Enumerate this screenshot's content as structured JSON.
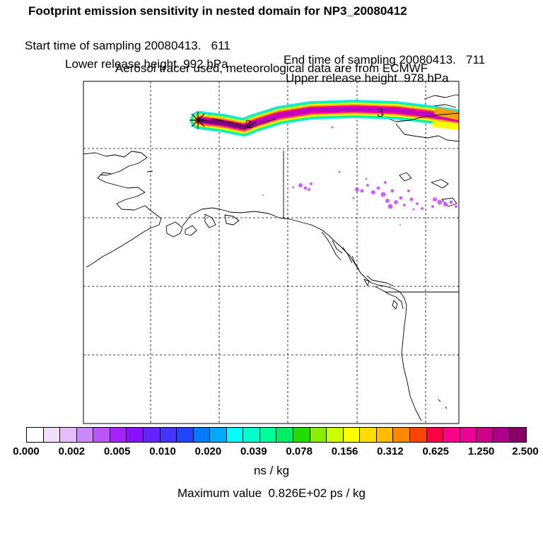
{
  "header": {
    "title": "Footprint emission sensitivity in nested domain for NP3_20080412",
    "start_label": "Start time of sampling 20080413.   611",
    "end_label": "End time of sampling 20080413.   711",
    "lower_release": "Lower release height  992 hPa",
    "upper_release": "Upper release height  978 hPa",
    "tracer_info": "Aerosol tracer used, meteorological data are from ECMWF"
  },
  "map": {
    "release_marker": "asterisk-icon",
    "plume_labels": [
      "3",
      "2"
    ],
    "plume_colors": [
      "#ff00a0",
      "#c000c0",
      "#7a0080",
      "#ffa000",
      "#ffff00",
      "#00ff80",
      "#00e0ff"
    ],
    "scatter_color": "#cc44ff"
  },
  "colorbar": {
    "colors": [
      "#ffffff",
      "#f3ddff",
      "#e7bbff",
      "#cd88ff",
      "#b855ff",
      "#a522ff",
      "#8811ff",
      "#6622ff",
      "#4433ff",
      "#2244ff",
      "#0077ff",
      "#00aaff",
      "#00ffff",
      "#00ffcc",
      "#00ff99",
      "#00ee66",
      "#22dd00",
      "#88ee00",
      "#ccff00",
      "#ffff00",
      "#ffdd00",
      "#ffbb00",
      "#ff8800",
      "#ff4400",
      "#ff0044",
      "#ff0088",
      "#ee0099",
      "#cc0088",
      "#aa0088",
      "#880066"
    ],
    "tick_labels": [
      "0.000",
      "0.002",
      "0.005",
      "0.010",
      "0.020",
      "0.039",
      "0.078",
      "0.156",
      "0.312",
      "0.625",
      "1.250",
      "2.500"
    ],
    "units": "ns / kg",
    "max_value": "Maximum value  0.826E+02 ps / kg"
  }
}
